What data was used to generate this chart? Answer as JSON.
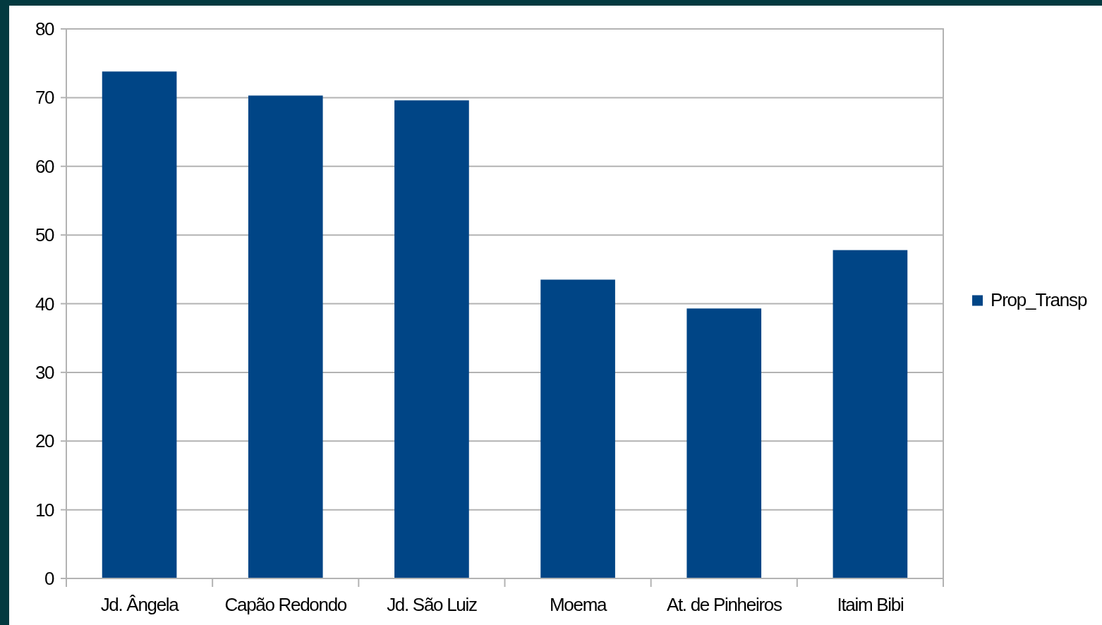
{
  "chart_data": {
    "type": "bar",
    "categories": [
      "Jd. Ângela",
      "Capão Redondo",
      "Jd. São Luiz",
      "Moema",
      "At. de Pinheiros",
      "Itaim Bibi"
    ],
    "series": [
      {
        "name": "Prop_Transp",
        "color": "#004586",
        "values": [
          73.8,
          70.3,
          69.6,
          43.5,
          39.3,
          47.8
        ]
      }
    ],
    "ylim": [
      0,
      80
    ],
    "yticks": [
      0,
      10,
      20,
      30,
      40,
      50,
      60,
      70,
      80
    ],
    "grid": "y",
    "legend": "right"
  }
}
